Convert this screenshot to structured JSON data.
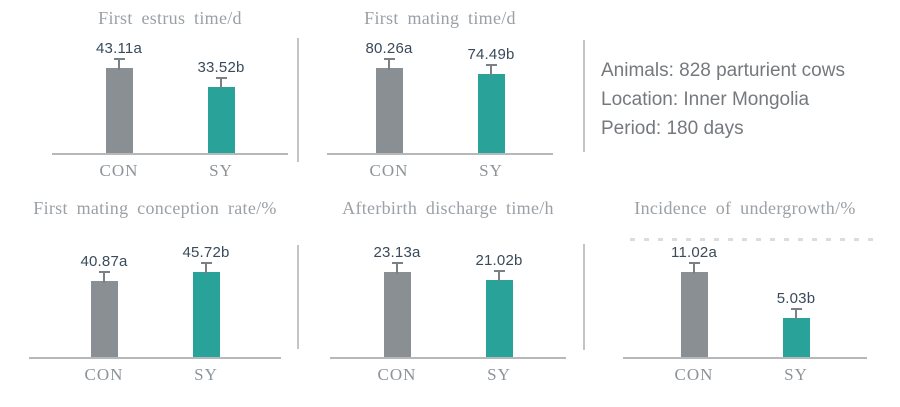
{
  "figure": {
    "series_names": [
      "CON",
      "SY"
    ],
    "bar_colors": {
      "con": "#8a8f94",
      "sy": "#29a39a"
    },
    "accent_colors": {
      "title_gray": "#9aa0a5",
      "value_text": "#3a4a5a",
      "divider": "#c2c5c8"
    }
  },
  "info_panel": {
    "line1": "Animals: 828 parturient cows",
    "line2": "Location: Inner Mongolia",
    "line3": "Period: 180 days"
  },
  "chart_data": [
    {
      "type": "bar",
      "title": "First estrus time/d",
      "categories": [
        "CON",
        "SY"
      ],
      "values": [
        43.11,
        33.52
      ],
      "bar_labels": [
        "43.11a",
        "33.52b"
      ],
      "bar_colors": [
        "#8a8f94",
        "#29a39a"
      ],
      "error_bars": true,
      "xlabel": "",
      "ylabel": "",
      "grid": false,
      "legend": "none"
    },
    {
      "type": "bar",
      "title": "First mating time/d",
      "categories": [
        "CON",
        "SY"
      ],
      "values": [
        80.26,
        74.49
      ],
      "bar_labels": [
        "80.26a",
        "74.49b"
      ],
      "bar_colors": [
        "#8a8f94",
        "#29a39a"
      ],
      "error_bars": true,
      "xlabel": "",
      "ylabel": "",
      "grid": false,
      "legend": "none"
    },
    {
      "type": "bar",
      "title": "First mating conception rate/%",
      "categories": [
        "CON",
        "SY"
      ],
      "values": [
        40.87,
        45.72
      ],
      "bar_labels": [
        "40.87a",
        "45.72b"
      ],
      "bar_colors": [
        "#8a8f94",
        "#29a39a"
      ],
      "error_bars": true,
      "xlabel": "",
      "ylabel": "",
      "grid": false,
      "legend": "none"
    },
    {
      "type": "bar",
      "title": "Afterbirth discharge time/h",
      "categories": [
        "CON",
        "SY"
      ],
      "values": [
        23.13,
        21.02
      ],
      "bar_labels": [
        "23.13a",
        "21.02b"
      ],
      "bar_colors": [
        "#8a8f94",
        "#29a39a"
      ],
      "error_bars": true,
      "xlabel": "",
      "ylabel": "",
      "grid": false,
      "legend": "none"
    },
    {
      "type": "bar",
      "title": "Incidence of undergrowth/%",
      "categories": [
        "CON",
        "SY"
      ],
      "values": [
        11.02,
        5.03
      ],
      "bar_labels": [
        "11.02a",
        "5.03b"
      ],
      "bar_colors": [
        "#8a8f94",
        "#29a39a"
      ],
      "error_bars": true,
      "xlabel": "",
      "ylabel": "",
      "grid": false,
      "legend": "none"
    }
  ]
}
